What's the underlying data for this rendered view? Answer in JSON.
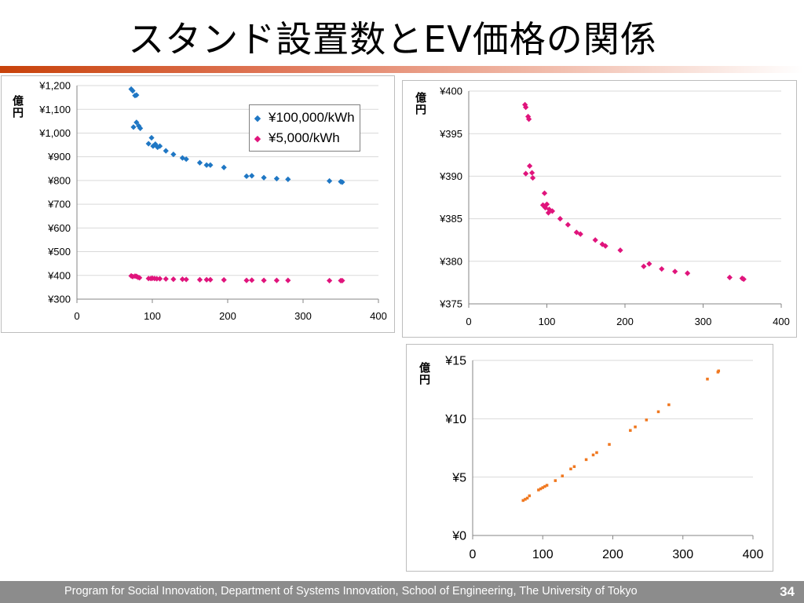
{
  "slide": {
    "title": "スタンド設置数とEV価格の関係",
    "page_number": "34",
    "footer": "Program for Social Innovation, Department of Systems Innovation, School of Engineering, The University of Tokyo"
  },
  "colors": {
    "blue": "#1f77c4",
    "pink": "#e0147c",
    "orange": "#f07820",
    "grid": "#d9d9d9",
    "axis": "#868686"
  },
  "chart_data": [
    {
      "type": "scatter",
      "ylabel": "億円",
      "xlim": [
        0,
        400
      ],
      "ylim": [
        300,
        1200
      ],
      "x_ticks": [
        "0",
        "100",
        "200",
        "300",
        "400"
      ],
      "y_ticks": [
        "¥300",
        "¥400",
        "¥500",
        "¥600",
        "¥700",
        "¥800",
        "¥900",
        "¥1,000",
        "¥1,100",
        "¥1,200"
      ],
      "legend": "inside top-right",
      "grid": true,
      "series": [
        {
          "name": "¥100,000/kWh",
          "color": "#1f77c4",
          "marker": "diamond",
          "points": [
            [
              72,
              1185
            ],
            [
              74,
              1178
            ],
            [
              77,
              1158
            ],
            [
              79,
              1160
            ],
            [
              75,
              1025
            ],
            [
              79,
              1045
            ],
            [
              82,
              1030
            ],
            [
              84,
              1020
            ],
            [
              95,
              955
            ],
            [
              99,
              980
            ],
            [
              101,
              945
            ],
            [
              104,
              953
            ],
            [
              107,
              940
            ],
            [
              110,
              945
            ],
            [
              118,
              925
            ],
            [
              128,
              910
            ],
            [
              140,
              895
            ],
            [
              145,
              890
            ],
            [
              163,
              875
            ],
            [
              172,
              865
            ],
            [
              177,
              865
            ],
            [
              195,
              855
            ],
            [
              225,
              818
            ],
            [
              232,
              820
            ],
            [
              248,
              812
            ],
            [
              265,
              808
            ],
            [
              280,
              805
            ],
            [
              335,
              798
            ],
            [
              350,
              795
            ],
            [
              352,
              793
            ]
          ]
        },
        {
          "name": "¥5,000/kWh",
          "color": "#e0147c",
          "marker": "diamond",
          "points": [
            [
              72,
              398
            ],
            [
              74,
              395
            ],
            [
              77,
              397
            ],
            [
              79,
              396
            ],
            [
              81,
              392
            ],
            [
              83,
              390
            ],
            [
              95,
              387
            ],
            [
              98,
              387
            ],
            [
              100,
              388
            ],
            [
              103,
              387
            ],
            [
              106,
              386
            ],
            [
              110,
              386
            ],
            [
              118,
              385
            ],
            [
              128,
              384
            ],
            [
              140,
              384
            ],
            [
              145,
              383
            ],
            [
              163,
              382
            ],
            [
              172,
              382
            ],
            [
              177,
              382
            ],
            [
              195,
              381
            ],
            [
              225,
              379
            ],
            [
              232,
              380
            ],
            [
              248,
              379
            ],
            [
              265,
              379
            ],
            [
              280,
              379
            ],
            [
              335,
              378
            ],
            [
              350,
              378
            ],
            [
              352,
              378
            ]
          ]
        }
      ]
    },
    {
      "type": "scatter",
      "ylabel": "億円",
      "xlim": [
        0,
        400
      ],
      "ylim": [
        375,
        400
      ],
      "x_ticks": [
        "0",
        "100",
        "200",
        "300",
        "400"
      ],
      "y_ticks": [
        "¥375",
        "¥380",
        "¥385",
        "¥390",
        "¥395",
        "¥400"
      ],
      "grid": true,
      "series": [
        {
          "color": "#e0147c",
          "marker": "diamond",
          "points": [
            [
              72,
              398.4
            ],
            [
              73,
              398.1
            ],
            [
              76,
              397.0
            ],
            [
              77,
              396.7
            ],
            [
              73,
              390.3
            ],
            [
              78,
              391.2
            ],
            [
              81,
              390.4
            ],
            [
              82,
              389.8
            ],
            [
              97,
              388.0
            ],
            [
              95,
              386.6
            ],
            [
              98,
              386.3
            ],
            [
              100,
              386.7
            ],
            [
              103,
              386.1
            ],
            [
              102,
              385.7
            ],
            [
              107,
              385.9
            ],
            [
              117,
              385.0
            ],
            [
              127,
              384.3
            ],
            [
              138,
              383.4
            ],
            [
              143,
              383.2
            ],
            [
              162,
              382.5
            ],
            [
              171,
              382.0
            ],
            [
              175,
              381.8
            ],
            [
              194,
              381.3
            ],
            [
              224,
              379.4
            ],
            [
              231,
              379.7
            ],
            [
              247,
              379.1
            ],
            [
              264,
              378.8
            ],
            [
              280,
              378.6
            ],
            [
              334,
              378.1
            ],
            [
              350,
              378.0
            ],
            [
              352,
              377.9
            ]
          ]
        }
      ]
    },
    {
      "type": "scatter",
      "ylabel": "億円",
      "xlim": [
        0,
        400
      ],
      "ylim": [
        0,
        15
      ],
      "x_ticks": [
        "0",
        "100",
        "200",
        "300",
        "400"
      ],
      "y_ticks": [
        "¥0",
        "¥5",
        "¥10",
        "¥15"
      ],
      "grid": true,
      "series": [
        {
          "color": "#f07820",
          "marker": "square",
          "points": [
            [
              72,
              3.0
            ],
            [
              75,
              3.1
            ],
            [
              78,
              3.2
            ],
            [
              81,
              3.4
            ],
            [
              94,
              3.9
            ],
            [
              97,
              4.0
            ],
            [
              100,
              4.1
            ],
            [
              103,
              4.2
            ],
            [
              106,
              4.3
            ],
            [
              118,
              4.7
            ],
            [
              128,
              5.1
            ],
            [
              140,
              5.7
            ],
            [
              145,
              5.9
            ],
            [
              162,
              6.5
            ],
            [
              172,
              6.9
            ],
            [
              177,
              7.1
            ],
            [
              195,
              7.8
            ],
            [
              225,
              9.0
            ],
            [
              232,
              9.3
            ],
            [
              248,
              9.9
            ],
            [
              265,
              10.6
            ],
            [
              280,
              11.2
            ],
            [
              335,
              13.4
            ],
            [
              350,
              14.0
            ],
            [
              351,
              14.1
            ]
          ]
        }
      ]
    }
  ]
}
